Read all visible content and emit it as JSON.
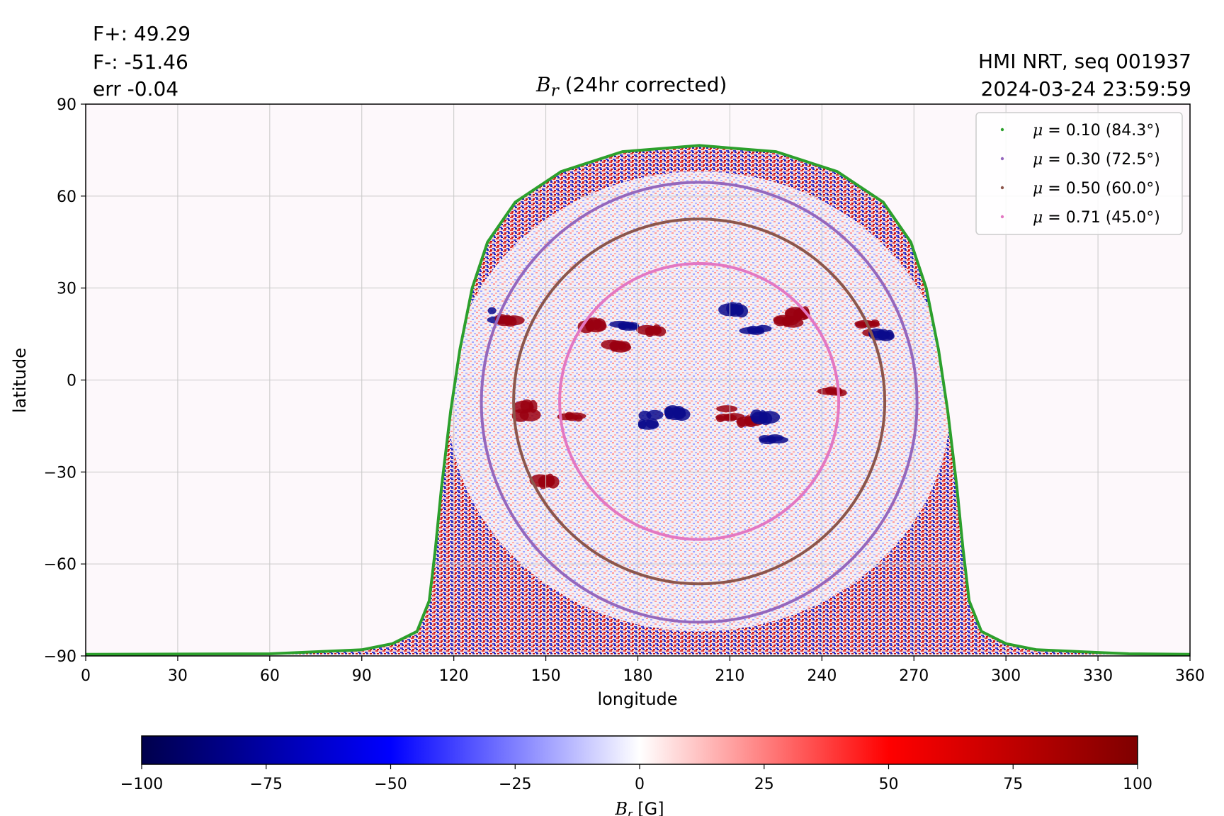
{
  "stats": {
    "f_plus": "F+: 49.29",
    "f_minus": "F-: -51.46",
    "err": "err -0.04"
  },
  "meta": {
    "source": "HMI NRT, seq 001937",
    "timestamp": "2024-03-24 23:59:59"
  },
  "title": {
    "symbol": "B",
    "subscript": "r",
    "text": " (24hr corrected)"
  },
  "chart_data": {
    "type": "heatmap",
    "xlabel": "longitude",
    "ylabel": "latitude",
    "xlim": [
      0,
      360
    ],
    "ylim": [
      -90,
      90
    ],
    "xticks": [
      "0",
      "30",
      "60",
      "90",
      "120",
      "150",
      "180",
      "210",
      "240",
      "270",
      "300",
      "330",
      "360"
    ],
    "yticks": [
      "90",
      "60",
      "30",
      "0",
      "−30",
      "−60",
      "−90"
    ],
    "grid": true,
    "legend_position": "top-right",
    "disk_center": {
      "lon": 200,
      "lat": -7
    },
    "limb_contour": {
      "mu": "0.10",
      "angle": "84.3",
      "points": [
        [
          0,
          -89.5
        ],
        [
          60,
          -89.3
        ],
        [
          90,
          -88
        ],
        [
          100,
          -86
        ],
        [
          108,
          -82
        ],
        [
          112,
          -72
        ],
        [
          114,
          -55
        ],
        [
          116,
          -35
        ],
        [
          119,
          -10
        ],
        [
          122,
          10
        ],
        [
          126,
          30
        ],
        [
          131,
          45
        ],
        [
          140,
          58
        ],
        [
          155,
          68
        ],
        [
          175,
          74.5
        ],
        [
          200,
          76.5
        ],
        [
          225,
          74.5
        ],
        [
          245,
          68
        ],
        [
          260,
          58
        ],
        [
          269,
          45
        ],
        [
          274,
          30
        ],
        [
          278,
          10
        ],
        [
          281,
          -10
        ],
        [
          284,
          -35
        ],
        [
          286,
          -55
        ],
        [
          288,
          -72
        ],
        [
          292,
          -82
        ],
        [
          300,
          -86
        ],
        [
          310,
          -88
        ],
        [
          340,
          -89.3
        ],
        [
          360,
          -89.5
        ]
      ]
    },
    "series": [
      {
        "name": "0.30",
        "mu": "0.30",
        "angle": "72.5",
        "color": "#9467bd",
        "rx": 71,
        "lat_top": 64.5,
        "lat_bottom": -79
      },
      {
        "name": "0.50",
        "mu": "0.50",
        "angle": "60.0",
        "color": "#8c564b",
        "rx": 60.5,
        "lat_top": 52.5,
        "lat_bottom": -66.5
      },
      {
        "name": "0.71",
        "mu": "0.71",
        "angle": "45.0",
        "color": "#e377c2",
        "rx": 45.5,
        "lat_top": 38,
        "lat_bottom": -52
      }
    ],
    "limb_color": "#2ca02c",
    "active_regions": [
      {
        "lon": 135,
        "lat": 21,
        "polarity": "negative"
      },
      {
        "lon": 138,
        "lat": 19,
        "polarity": "positive"
      },
      {
        "lon": 165,
        "lat": 19,
        "polarity": "positive"
      },
      {
        "lon": 176,
        "lat": 17,
        "polarity": "negative"
      },
      {
        "lon": 185,
        "lat": 17,
        "polarity": "positive"
      },
      {
        "lon": 212,
        "lat": 22,
        "polarity": "negative"
      },
      {
        "lon": 219,
        "lat": 17,
        "polarity": "negative"
      },
      {
        "lon": 228,
        "lat": 18,
        "polarity": "positive"
      },
      {
        "lon": 232,
        "lat": 22,
        "polarity": "positive"
      },
      {
        "lon": 255,
        "lat": 17,
        "polarity": "positive"
      },
      {
        "lon": 260,
        "lat": 15,
        "polarity": "negative"
      },
      {
        "lon": 144,
        "lat": -10,
        "polarity": "positive"
      },
      {
        "lon": 159,
        "lat": -12,
        "polarity": "positive"
      },
      {
        "lon": 183,
        "lat": -13,
        "polarity": "negative"
      },
      {
        "lon": 192,
        "lat": -11,
        "polarity": "negative"
      },
      {
        "lon": 209,
        "lat": -11,
        "polarity": "positive"
      },
      {
        "lon": 216,
        "lat": -14,
        "polarity": "positive"
      },
      {
        "lon": 221,
        "lat": -11,
        "polarity": "negative"
      },
      {
        "lon": 224,
        "lat": -20,
        "polarity": "negative"
      },
      {
        "lon": 173,
        "lat": 12,
        "polarity": "positive"
      },
      {
        "lon": 150,
        "lat": -34,
        "polarity": "positive"
      },
      {
        "lon": 244,
        "lat": -3,
        "polarity": "positive"
      }
    ],
    "colorbar": {
      "label_symbol": "B",
      "label_subscript": "r",
      "label_unit": " [G]",
      "range": [
        -100,
        100
      ],
      "ticks": [
        "−100",
        "−75",
        "−50",
        "−25",
        "0",
        "25",
        "50",
        "75",
        "100"
      ],
      "colormap": "seismic",
      "color_stops": [
        "#00004c",
        "#0000ff",
        "#ffffff",
        "#ff0000",
        "#7f0000"
      ]
    }
  }
}
